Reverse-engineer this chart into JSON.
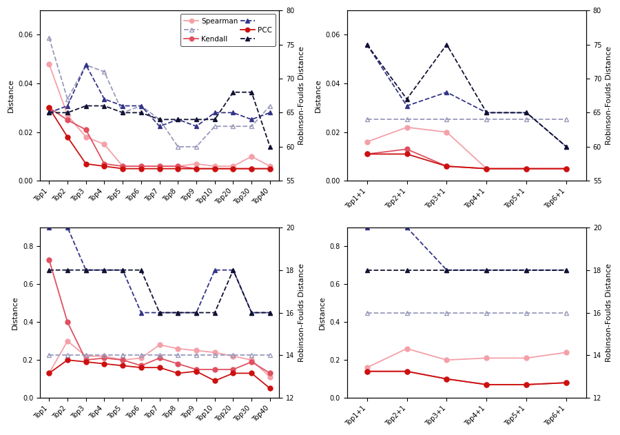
{
  "top_left": {
    "x_labels": [
      "Top1",
      "Top2",
      "Top3",
      "Top4",
      "Top5",
      "Top6",
      "Top7",
      "Top8",
      "Top9",
      "Top10",
      "Top20",
      "Top30",
      "Top40"
    ],
    "spearman": [
      0.048,
      0.027,
      0.018,
      0.015,
      0.006,
      0.006,
      0.006,
      0.006,
      0.007,
      0.006,
      0.006,
      0.01,
      0.006
    ],
    "kendall": [
      0.03,
      0.025,
      0.021,
      0.007,
      0.006,
      0.006,
      0.006,
      0.006,
      0.005,
      0.005,
      0.005,
      0.005,
      0.005
    ],
    "pcc": [
      0.03,
      0.018,
      0.007,
      0.006,
      0.005,
      0.005,
      0.005,
      0.005,
      0.005,
      0.005,
      0.005,
      0.005,
      0.005
    ],
    "rf_spearman": [
      76,
      67,
      72,
      71,
      65,
      66,
      64,
      60,
      60,
      63,
      63,
      63,
      66
    ],
    "rf_kendall": [
      65,
      66,
      72,
      67,
      66,
      66,
      63,
      64,
      63,
      65,
      65,
      64,
      65
    ],
    "rf_pcc": [
      65,
      65,
      66,
      66,
      65,
      65,
      64,
      64,
      64,
      64,
      68,
      68,
      60
    ],
    "ylim_left": [
      0.0,
      0.07
    ],
    "ylim_right": [
      55,
      80
    ],
    "yticks_left": [
      0.0,
      0.02,
      0.04,
      0.06
    ],
    "yticks_right": [
      55,
      60,
      65,
      70,
      75,
      80
    ]
  },
  "top_right": {
    "x_labels": [
      "Top1+1",
      "Top2+1",
      "Top3+1",
      "Top4+1",
      "Top5+1",
      "Top6+1"
    ],
    "spearman": [
      0.016,
      0.022,
      0.02,
      0.005,
      0.005,
      0.005
    ],
    "kendall": [
      0.011,
      0.013,
      0.006,
      0.005,
      0.005,
      0.005
    ],
    "pcc": [
      0.011,
      0.011,
      0.006,
      0.005,
      0.005,
      0.005
    ],
    "rf_spearman": [
      64,
      64,
      64,
      64,
      64,
      64
    ],
    "rf_kendall": [
      75,
      66,
      68,
      65,
      65,
      60
    ],
    "rf_pcc": [
      75,
      67,
      75,
      65,
      65,
      60
    ],
    "ylim_left": [
      0.0,
      0.07
    ],
    "ylim_right": [
      55,
      80
    ],
    "yticks_left": [
      0.0,
      0.02,
      0.04,
      0.06
    ],
    "yticks_right": [
      55,
      60,
      65,
      70,
      75,
      80
    ]
  },
  "bot_left": {
    "x_labels": [
      "Top1",
      "Top2",
      "Top3",
      "Top4",
      "Top5",
      "Top6",
      "Top7",
      "Top8",
      "Top9",
      "Top10",
      "Top20",
      "Top30",
      "Top40"
    ],
    "spearman": [
      0.13,
      0.3,
      0.22,
      0.22,
      0.2,
      0.21,
      0.28,
      0.26,
      0.25,
      0.24,
      0.22,
      0.2,
      0.11
    ],
    "kendall": [
      0.73,
      0.4,
      0.2,
      0.21,
      0.2,
      0.17,
      0.21,
      0.18,
      0.15,
      0.15,
      0.15,
      0.19,
      0.13
    ],
    "pcc": [
      0.13,
      0.2,
      0.19,
      0.18,
      0.17,
      0.16,
      0.16,
      0.13,
      0.14,
      0.09,
      0.13,
      0.13,
      0.05
    ],
    "rf_spearman": [
      14,
      14,
      14,
      14,
      14,
      14,
      14,
      14,
      14,
      14,
      14,
      14,
      14
    ],
    "rf_kendall": [
      20,
      20,
      18,
      18,
      18,
      16,
      16,
      16,
      16,
      18,
      18,
      16,
      16
    ],
    "rf_pcc": [
      18,
      18,
      18,
      18,
      18,
      18,
      16,
      16,
      16,
      16,
      18,
      16,
      16
    ],
    "ylim_left": [
      0.0,
      0.9
    ],
    "ylim_right": [
      12,
      20
    ],
    "yticks_left": [
      0.0,
      0.2,
      0.4,
      0.6,
      0.8
    ],
    "yticks_right": [
      12,
      14,
      16,
      18,
      20
    ]
  },
  "bot_right": {
    "x_labels": [
      "Top1+1",
      "Top2+1",
      "Top3+1",
      "Top4+1",
      "Top5+1",
      "Top6+1"
    ],
    "spearman": [
      0.16,
      0.26,
      0.2,
      0.21,
      0.21,
      0.24
    ],
    "kendall": [
      0.14,
      0.14,
      0.1,
      0.07,
      0.07,
      0.08
    ],
    "pcc": [
      0.14,
      0.14,
      0.1,
      0.07,
      0.07,
      0.08
    ],
    "rf_spearman": [
      16,
      16,
      16,
      16,
      16,
      16
    ],
    "rf_kendall": [
      20,
      20,
      18,
      18,
      18,
      18
    ],
    "rf_pcc": [
      18,
      18,
      18,
      18,
      18,
      18
    ],
    "ylim_left": [
      0.0,
      0.9
    ],
    "ylim_right": [
      12,
      20
    ],
    "yticks_left": [
      0.0,
      0.2,
      0.4,
      0.6,
      0.8
    ],
    "yticks_right": [
      12,
      14,
      16,
      18,
      20
    ]
  },
  "colors": {
    "spearman_line": "#F4A0A8",
    "kendall_line": "#E05060",
    "pcc_line": "#CC1010",
    "rf_spearman_line": "#9999BB",
    "rf_kendall_line": "#333388",
    "rf_pcc_line": "#111133"
  },
  "ylabel_left": "Distance",
  "ylabel_right": "Robinson-Foulds Distance"
}
